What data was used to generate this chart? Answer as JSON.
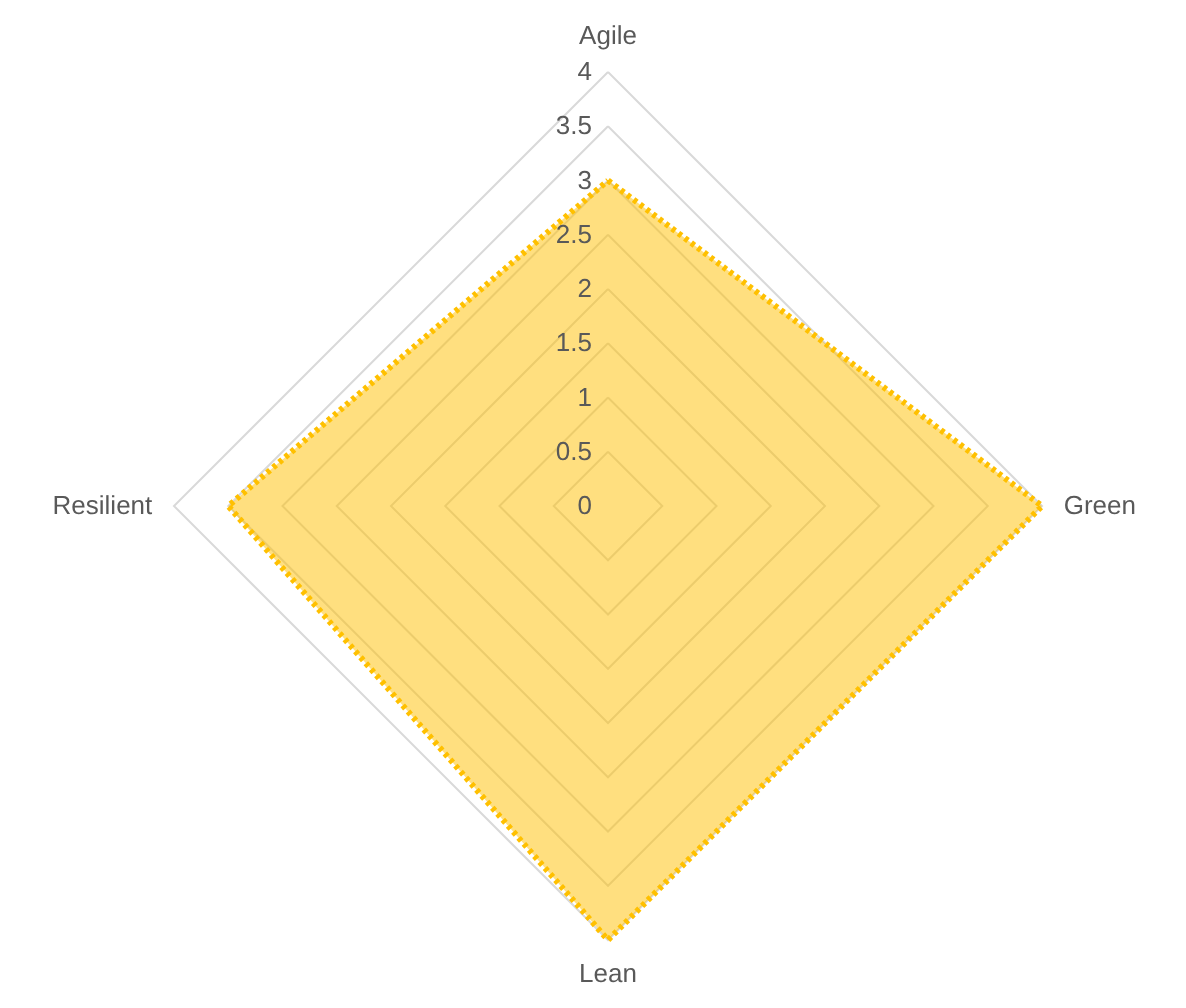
{
  "chart_data": {
    "type": "radar",
    "categories": [
      "Agile",
      "Green",
      "Lean",
      "Resilient"
    ],
    "series": [
      {
        "color": "#ffc000",
        "values": [
          3,
          4,
          4,
          3.5
        ]
      }
    ],
    "ylim": [
      0,
      4
    ],
    "yticks": [
      0,
      0.5,
      1,
      1.5,
      2,
      2.5,
      3,
      3.5,
      4
    ],
    "grid": true,
    "line_style": "dotted"
  }
}
